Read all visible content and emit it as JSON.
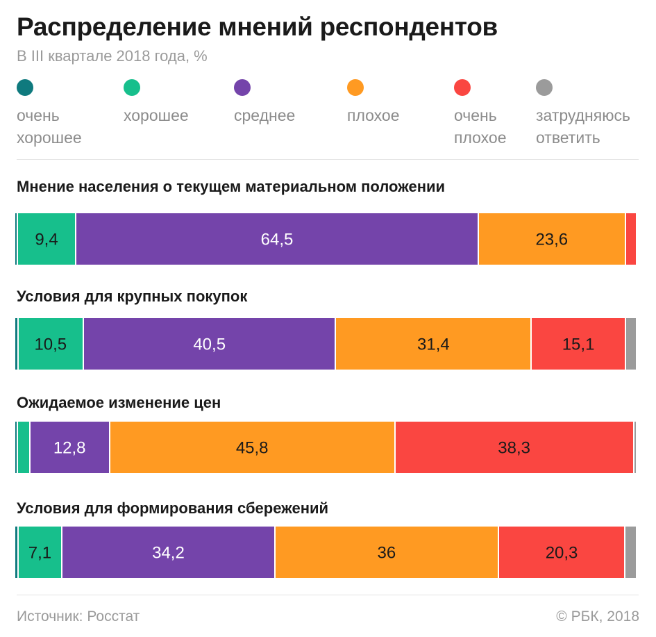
{
  "header": {
    "title": "Распределение мнений респондентов",
    "subtitle": "В III квартале 2018 года, %"
  },
  "footer": {
    "source": "Источник: Росстат",
    "copyright": "© РБК, 2018"
  },
  "colors": {
    "very_good": "#0f7a7e",
    "good": "#17bf8c",
    "average": "#7444aa",
    "bad": "#ff9a22",
    "very_bad": "#fa4641",
    "no_answer": "#9b9b9b"
  },
  "chart_data": {
    "type": "bar",
    "orientation": "horizontal",
    "stacked": true,
    "normalized_percent": true,
    "title": "Распределение мнений респондентов",
    "subtitle": "В III квартале 2018 года, %",
    "legend_position": "top",
    "grid": false,
    "xlim": [
      0,
      100
    ],
    "legend": [
      {
        "key": "very_good",
        "label": "очень\nхорошее"
      },
      {
        "key": "good",
        "label": "хорошее"
      },
      {
        "key": "average",
        "label": "среднее"
      },
      {
        "key": "bad",
        "label": "плохое"
      },
      {
        "key": "very_bad",
        "label": "очень\nплохое"
      },
      {
        "key": "no_answer",
        "label": "затрудняюсь\nответить"
      }
    ],
    "categories": [
      "Мнение населения о текущем материальном положении",
      "Условия для крупных покупок",
      "Ожидаемое изменение цен",
      "Условия для формирования сбережений"
    ],
    "series": [
      {
        "name": "очень хорошее",
        "key": "very_good",
        "values": [
          0.2,
          0.3,
          0.2,
          0.3
        ],
        "labels": [
          "",
          "",
          "",
          ""
        ]
      },
      {
        "name": "хорошее",
        "key": "good",
        "values": [
          9.4,
          10.5,
          2.0,
          7.1
        ],
        "labels": [
          "9,4",
          "10,5",
          "",
          "7,1"
        ]
      },
      {
        "name": "среднее",
        "key": "average",
        "values": [
          64.5,
          40.5,
          12.8,
          34.2
        ],
        "labels": [
          "64,5",
          "40,5",
          "12,8",
          "34,2"
        ]
      },
      {
        "name": "плохое",
        "key": "bad",
        "values": [
          23.6,
          31.4,
          45.8,
          36.0
        ],
        "labels": [
          "23,6",
          "31,4",
          "45,8",
          "36"
        ]
      },
      {
        "name": "очень плохое",
        "key": "very_bad",
        "values": [
          1.8,
          15.1,
          38.3,
          20.3
        ],
        "labels": [
          "",
          "15,1",
          "38,3",
          "20,3"
        ]
      },
      {
        "name": "затрудняюсь ответить",
        "key": "no_answer",
        "values": [
          0.0,
          1.8,
          0.5,
          1.9
        ],
        "labels": [
          "",
          "",
          "",
          ""
        ]
      }
    ]
  }
}
